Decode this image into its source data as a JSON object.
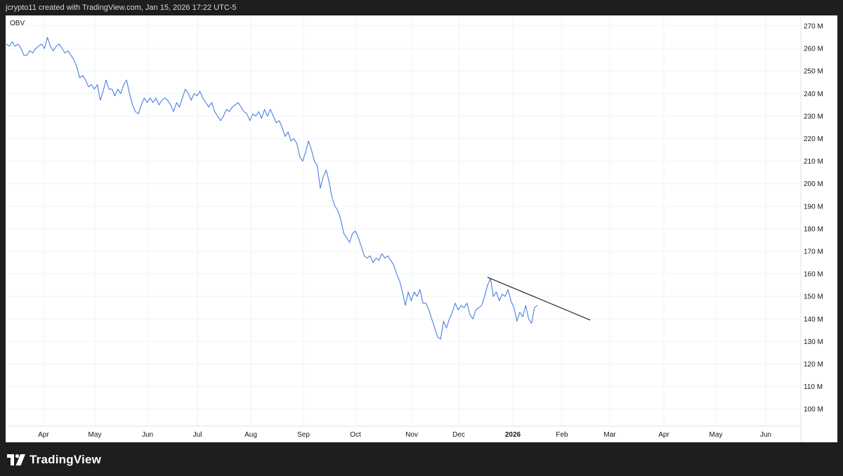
{
  "header": {
    "attribution": "jcrypto11 created with TradingView.com, Jan 15, 2026 17:22 UTC-5"
  },
  "footer": {
    "brand": "TradingView"
  },
  "colors": {
    "line": "#4a7fe0",
    "trendline": "#2a2a2a",
    "grid": "#f0f3fa",
    "background": "#ffffff",
    "frame": "#1e1e1e"
  },
  "chart_data": {
    "type": "line",
    "indicator": "OBV",
    "y_axis": {
      "side": "right",
      "unit": "M",
      "ticks": [
        "270 M",
        "260 M",
        "250 M",
        "240 M",
        "230 M",
        "220 M",
        "210 M",
        "200 M",
        "190 M",
        "180 M",
        "170 M",
        "160 M",
        "150 M",
        "140 M",
        "130 M",
        "120 M",
        "110 M",
        "100 M"
      ],
      "ylim": [
        92,
        272
      ]
    },
    "x_axis": {
      "ticks": [
        {
          "label": "Apr",
          "bold": false
        },
        {
          "label": "May",
          "bold": false
        },
        {
          "label": "Jun",
          "bold": false
        },
        {
          "label": "Jul",
          "bold": false
        },
        {
          "label": "Aug",
          "bold": false
        },
        {
          "label": "Sep",
          "bold": false
        },
        {
          "label": "Oct",
          "bold": false
        },
        {
          "label": "Nov",
          "bold": false
        },
        {
          "label": "Dec",
          "bold": false
        },
        {
          "label": "2026",
          "bold": true
        },
        {
          "label": "Feb",
          "bold": false
        },
        {
          "label": "Mar",
          "bold": false
        },
        {
          "label": "Apr",
          "bold": false
        },
        {
          "label": "May",
          "bold": false
        },
        {
          "label": "Jun",
          "bold": false
        }
      ]
    },
    "grid": true,
    "series": [
      {
        "values": [
          262,
          261,
          263,
          261,
          262,
          260,
          257,
          257,
          259,
          258,
          260,
          261,
          262,
          260,
          265,
          261,
          259,
          261,
          262,
          260,
          258,
          259,
          257,
          255,
          252,
          247,
          248,
          246,
          243,
          244,
          242,
          244,
          237,
          241,
          246,
          242,
          242,
          239,
          242,
          240,
          244,
          246,
          240,
          235,
          232,
          231,
          235,
          238,
          236,
          238,
          236,
          238,
          235,
          237,
          238,
          237,
          235,
          232,
          236,
          234,
          238,
          242,
          240,
          237,
          240,
          239,
          241,
          238,
          236,
          234,
          236,
          232,
          230,
          228,
          230,
          233,
          232,
          234,
          235,
          236,
          234,
          232,
          231,
          228,
          231,
          230,
          232,
          229,
          233,
          230,
          233,
          230,
          227,
          228,
          225,
          221,
          223,
          219,
          220,
          218,
          212,
          210,
          214,
          219,
          215,
          210,
          208,
          198,
          203,
          206,
          201,
          194,
          190,
          188,
          184,
          178,
          176,
          174,
          178,
          179,
          176,
          172,
          168,
          167,
          168,
          165,
          167,
          166,
          169,
          167,
          168,
          166,
          164,
          160,
          157,
          152,
          146,
          152,
          148,
          152,
          150,
          153,
          147,
          147,
          144,
          140,
          136,
          132,
          131,
          139,
          136,
          140,
          143,
          147,
          144,
          146,
          145,
          147,
          142,
          140,
          144,
          145,
          146,
          150,
          155,
          158,
          150,
          152,
          148,
          151,
          150,
          153,
          148,
          145,
          139,
          143,
          141,
          146,
          140,
          138,
          145,
          146
        ]
      }
    ],
    "annotations": [
      {
        "type": "trendline",
        "from": {
          "index": 164,
          "value": 158.5
        },
        "to": {
          "index": 199,
          "value": 139.5
        }
      }
    ]
  }
}
